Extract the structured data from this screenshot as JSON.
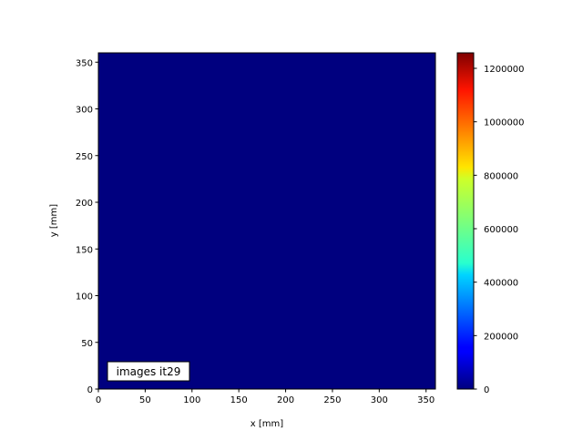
{
  "chart_data": {
    "type": "heatmap",
    "title": "",
    "xlabel": "x [mm]",
    "ylabel": "y [mm]",
    "xlim": [
      0,
      360
    ],
    "ylim": [
      0,
      360
    ],
    "xticks": [
      0,
      50,
      100,
      150,
      200,
      250,
      300,
      350
    ],
    "yticks": [
      0,
      50,
      100,
      150,
      200,
      250,
      300,
      350
    ],
    "values": [
      [
        0
      ]
    ],
    "colormap": "jet",
    "colorbar": {
      "range": [
        0,
        1258000
      ],
      "ticks": [
        0,
        200000,
        400000,
        600000,
        800000,
        1000000,
        1200000
      ]
    },
    "annotation": "images it29",
    "grid": false
  },
  "colors": {
    "field": "#00007f"
  }
}
